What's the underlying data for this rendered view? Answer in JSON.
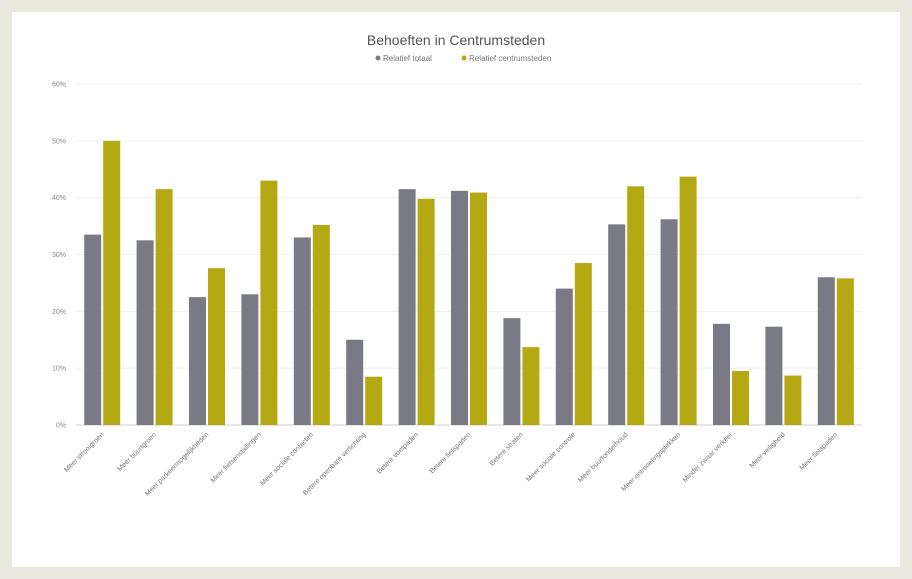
{
  "chart_data": {
    "type": "bar",
    "title": "Behoeften in Centrumsteden",
    "categories": [
      "Meer strooigroen",
      "Meer buurtgroen",
      "Meer parkeermogelijkheden",
      "Meer fietsenstallingen",
      "Meer sociale contacten",
      "Betere openbare verlichting",
      "Betere voetpaden",
      "Betere fietspaden",
      "Betere straten",
      "Meer sociale controle",
      "Meer buurtonderhoud",
      "Meer ontmoetingsplekken",
      "Minder zwaar verkeer",
      "Meer veiligheid",
      "Meer fietspaden"
    ],
    "series": [
      {
        "name": "Relatief totaal",
        "color": "#7a7a84",
        "values": [
          33.5,
          32.5,
          22.5,
          23,
          33,
          15,
          41.5,
          41.2,
          18.8,
          24,
          35.3,
          36.2,
          17.8,
          17.3,
          26
        ]
      },
      {
        "name": "Relatief centrumsteden",
        "color": "#b4a813",
        "values": [
          50,
          41.5,
          27.6,
          43,
          35.2,
          8.5,
          39.8,
          40.9,
          13.7,
          28.5,
          42,
          43.7,
          9.5,
          8.7,
          25.8
        ]
      }
    ],
    "ylim": [
      0,
      60
    ],
    "yticks": [
      "0%",
      "10%",
      "20%",
      "30%",
      "40%",
      "50%",
      "60%"
    ],
    "grid": true,
    "legend_position": "top"
  }
}
